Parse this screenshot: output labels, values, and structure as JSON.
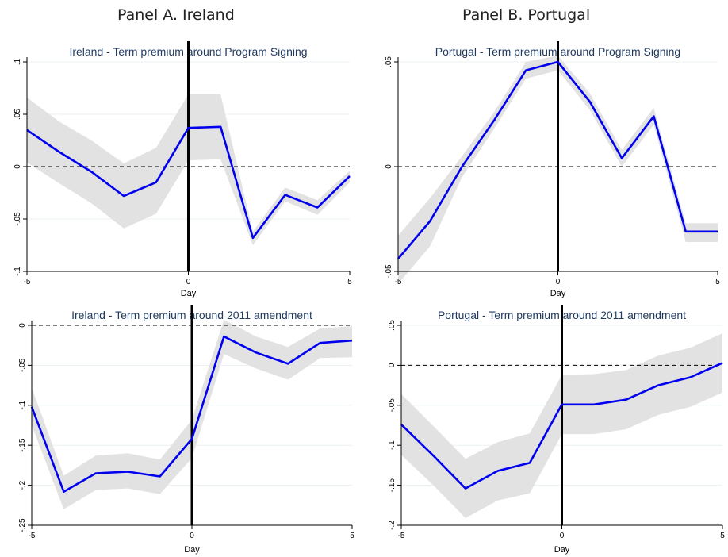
{
  "panels": {
    "a_title": "Panel A. Ireland",
    "b_title": "Panel B. Portugal"
  },
  "colors": {
    "line": "#0000ee",
    "band": "#e2e2e2",
    "grid": "#eaf0f2",
    "event": "#000000"
  },
  "chart_data": [
    {
      "type": "line",
      "title": "Ireland - Term premium around Program Signing",
      "xlabel": "Day",
      "ylabel": "",
      "xlim": [
        -5,
        5
      ],
      "ylim": [
        -0.1,
        0.1
      ],
      "xticks": [
        -5,
        0,
        5
      ],
      "xtick_labels": [
        "-5",
        "0",
        "5"
      ],
      "yticks": [
        -0.1,
        -0.05,
        0,
        0.05,
        0.1
      ],
      "ytick_labels": [
        "-.1",
        "-.05",
        "0",
        ".05",
        ".1"
      ],
      "grid": true,
      "event_line_x": 0,
      "zero_line": true,
      "x": [
        -5,
        -4,
        -3,
        -2,
        -1,
        0,
        1,
        2,
        3,
        4,
        5
      ],
      "series": [
        {
          "values": [
            0.035,
            0.014,
            -0.005,
            -0.028,
            -0.015,
            0.037,
            0.038,
            -0.068,
            -0.027,
            -0.039,
            -0.009
          ]
        }
      ],
      "band_upper": [
        0.066,
        0.043,
        0.025,
        0.003,
        0.018,
        0.069,
        0.069,
        -0.062,
        -0.02,
        -0.032,
        -0.004
      ],
      "band_lower": [
        0.004,
        -0.016,
        -0.035,
        -0.059,
        -0.045,
        0.006,
        0.007,
        -0.075,
        -0.033,
        -0.046,
        -0.015
      ]
    },
    {
      "type": "line",
      "title": "Portugal - Term premium around Program Signing",
      "xlabel": "Day",
      "ylabel": "",
      "xlim": [
        -5,
        5
      ],
      "ylim": [
        -0.05,
        0.05
      ],
      "xticks": [
        -5,
        0,
        5
      ],
      "xtick_labels": [
        "-5",
        "0",
        "5"
      ],
      "yticks": [
        -0.05,
        0,
        0.05
      ],
      "ytick_labels": [
        "-.05",
        "0",
        ".05"
      ],
      "grid": true,
      "event_line_x": 0,
      "zero_line": true,
      "x": [
        -5,
        -4,
        -3,
        -2,
        -1,
        0,
        1,
        2,
        3,
        4,
        5
      ],
      "series": [
        {
          "values": [
            -0.044,
            -0.026,
            0.0,
            0.022,
            0.046,
            0.05,
            0.031,
            0.004,
            0.024,
            -0.031,
            -0.031
          ]
        }
      ],
      "band_upper": [
        -0.033,
        -0.015,
        0.005,
        0.026,
        0.05,
        0.053,
        0.035,
        0.008,
        0.028,
        -0.027,
        -0.027
      ],
      "band_lower": [
        -0.056,
        -0.038,
        -0.005,
        0.018,
        0.042,
        0.046,
        0.027,
        0.0,
        0.02,
        -0.036,
        -0.036
      ]
    },
    {
      "type": "line",
      "title": "Ireland - Term premium around 2011 amendment",
      "xlabel": "Day",
      "ylabel": "",
      "xlim": [
        -5,
        5
      ],
      "ylim": [
        -0.25,
        0
      ],
      "xticks": [
        -5,
        0,
        5
      ],
      "xtick_labels": [
        "-5",
        "0",
        "5"
      ],
      "yticks": [
        -0.25,
        -0.2,
        -0.15,
        -0.1,
        -0.05,
        0
      ],
      "ytick_labels": [
        "-.25",
        "-.2",
        "-.15",
        "-.1",
        "-.05",
        "0"
      ],
      "grid": true,
      "event_line_x": 0,
      "zero_line": true,
      "x": [
        -5,
        -4,
        -3,
        -2,
        -1,
        0,
        1,
        2,
        3,
        4,
        5
      ],
      "series": [
        {
          "values": [
            -0.102,
            -0.208,
            -0.185,
            -0.183,
            -0.189,
            -0.142,
            -0.014,
            -0.034,
            -0.048,
            -0.022,
            -0.019
          ]
        }
      ],
      "band_upper": [
        -0.078,
        -0.188,
        -0.163,
        -0.16,
        -0.168,
        -0.118,
        0.007,
        -0.014,
        -0.027,
        -0.004,
        -0.001
      ],
      "band_lower": [
        -0.125,
        -0.23,
        -0.206,
        -0.204,
        -0.211,
        -0.166,
        -0.036,
        -0.054,
        -0.068,
        -0.041,
        -0.04
      ]
    },
    {
      "type": "line",
      "title": "Portugal - Term premium around 2011 amendment",
      "xlabel": "Day",
      "ylabel": "",
      "xlim": [
        -5,
        5
      ],
      "ylim": [
        -0.2,
        0.05
      ],
      "xticks": [
        -5,
        0,
        5
      ],
      "xtick_labels": [
        "-5",
        "0",
        "5"
      ],
      "yticks": [
        -0.2,
        -0.15,
        -0.1,
        -0.05,
        0,
        0.05
      ],
      "ytick_labels": [
        "-.2",
        "-.15",
        "-.1",
        "-.05",
        "0",
        ".05"
      ],
      "grid": true,
      "event_line_x": 0,
      "zero_line": true,
      "x": [
        -5,
        -4,
        -3,
        -2,
        -1,
        0,
        1,
        2,
        3,
        4,
        5
      ],
      "series": [
        {
          "values": [
            -0.074,
            -0.113,
            -0.154,
            -0.132,
            -0.122,
            -0.049,
            -0.049,
            -0.043,
            -0.025,
            -0.015,
            0.003
          ]
        }
      ],
      "band_upper": [
        -0.036,
        -0.076,
        -0.117,
        -0.096,
        -0.085,
        -0.012,
        -0.011,
        -0.006,
        0.012,
        0.022,
        0.04
      ],
      "band_lower": [
        -0.112,
        -0.15,
        -0.191,
        -0.169,
        -0.16,
        -0.086,
        -0.086,
        -0.08,
        -0.062,
        -0.052,
        -0.034
      ]
    }
  ]
}
